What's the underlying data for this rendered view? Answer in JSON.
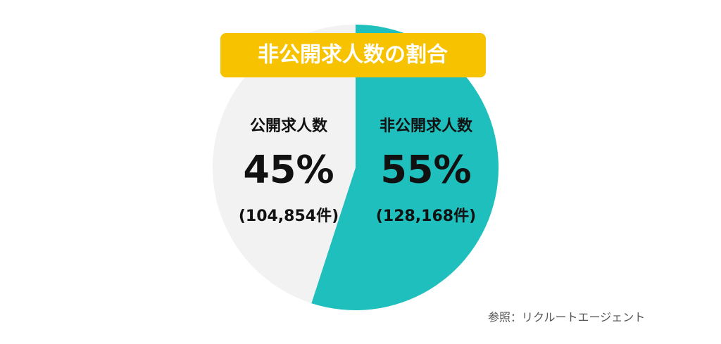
{
  "chart_data": {
    "type": "pie",
    "title": "非公開求人数の割合",
    "categories": [
      "非公開求人数",
      "公開求人数"
    ],
    "values": [
      55,
      45
    ],
    "value_labels": [
      "55%",
      "45%"
    ],
    "count_labels": [
      "(128,168件)",
      "(104,854件)"
    ],
    "colors": [
      "#1fbfbd",
      "#f2f2f2"
    ],
    "source": "参照：リクルートエージェント"
  }
}
